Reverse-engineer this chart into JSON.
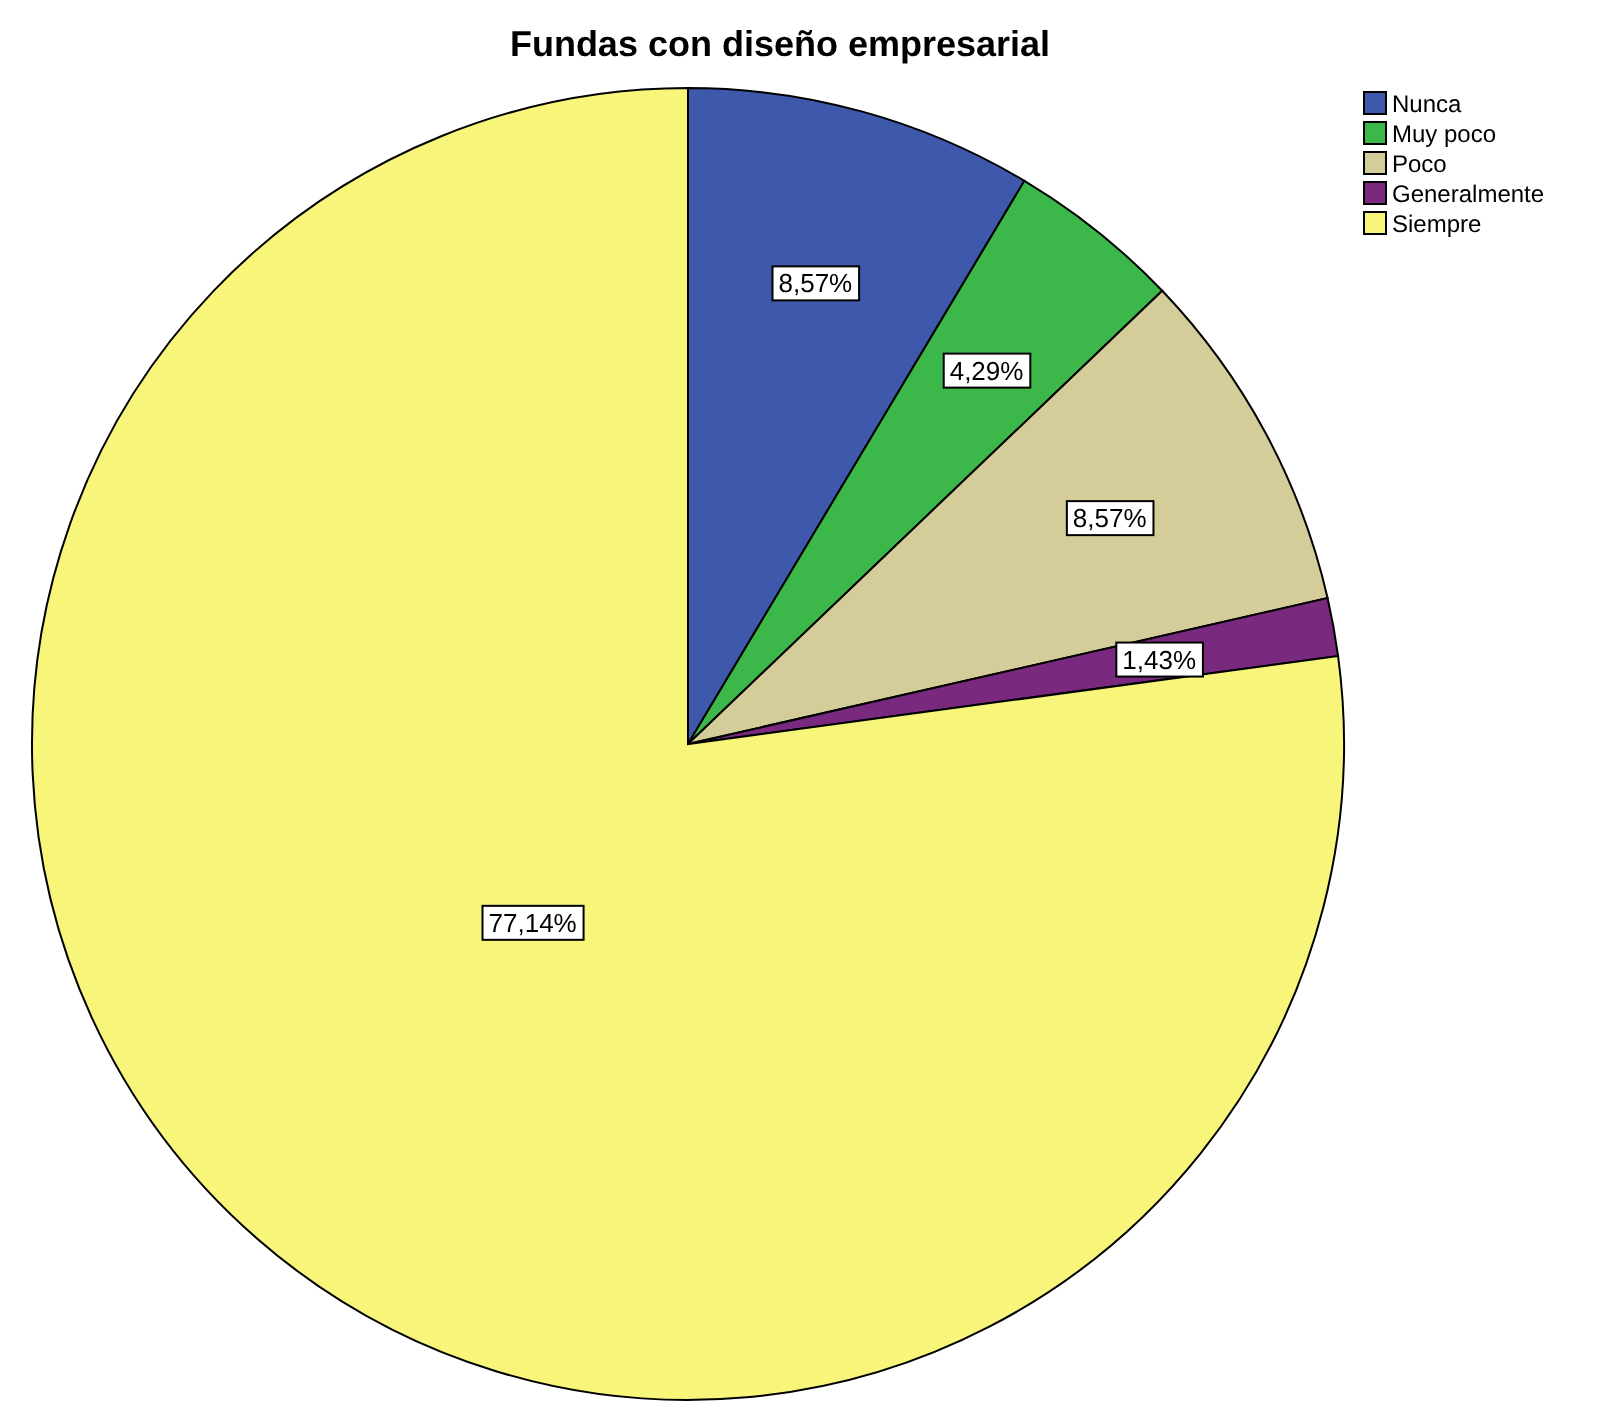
{
  "chart_data": {
    "type": "pie",
    "title": "Fundas con diseño empresarial",
    "categories": [
      "Nunca",
      "Muy poco",
      "Poco",
      "Generalmente",
      "Siempre"
    ],
    "values": [
      8.57,
      4.29,
      8.57,
      1.43,
      77.14
    ],
    "colors": [
      "#3e58ac",
      "#3cb84a",
      "#d4cc99",
      "#7a2a7e",
      "#f7f57a"
    ],
    "value_labels": [
      "8,57%",
      "4,29%",
      "8,57%",
      "1,43%",
      "77,14%"
    ],
    "legend": "top right"
  }
}
